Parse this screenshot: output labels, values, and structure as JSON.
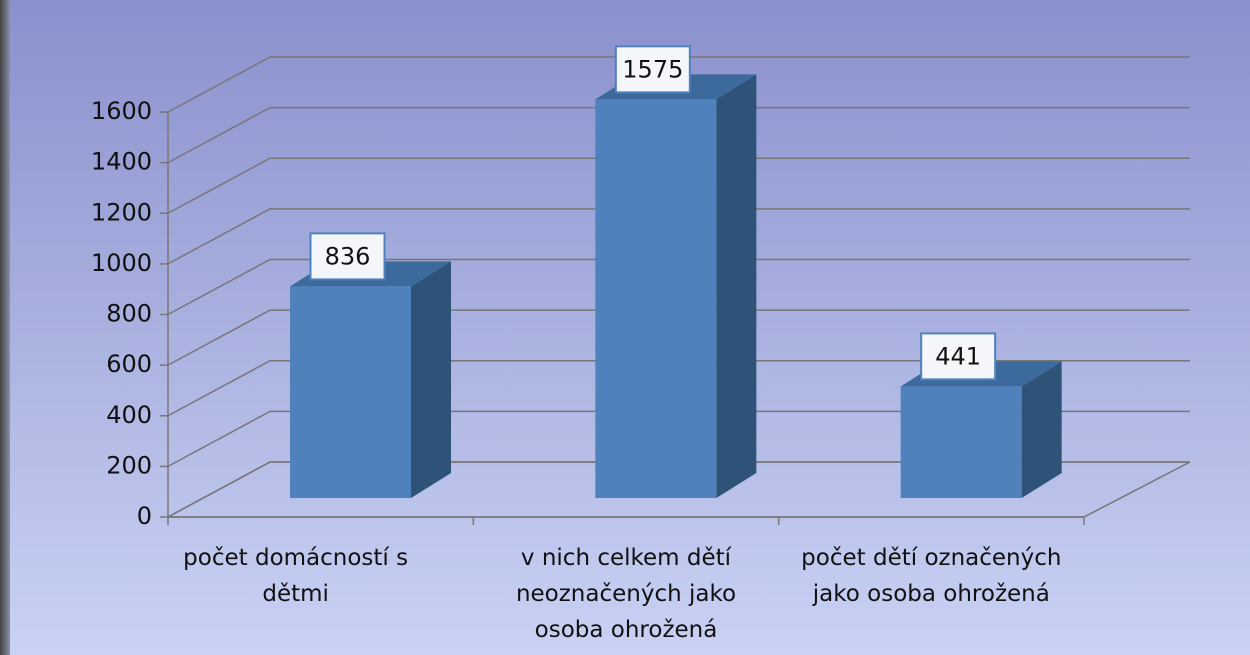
{
  "chart_data": {
    "type": "bar3d",
    "categories": [
      "počet domácností s dětmi",
      "v nich celkem dětí neoznačených jako osoba ohrožená",
      "počet dětí označených jako osoba ohrožená"
    ],
    "values": [
      836,
      1575,
      441
    ],
    "color": "#4f81bd",
    "side_color": "#2f5278",
    "top_color": "#3d6a9c",
    "ylim": [
      0,
      1600
    ],
    "yticks": [
      0,
      200,
      400,
      600,
      800,
      1000,
      1200,
      1400,
      1600
    ],
    "grid": true
  }
}
